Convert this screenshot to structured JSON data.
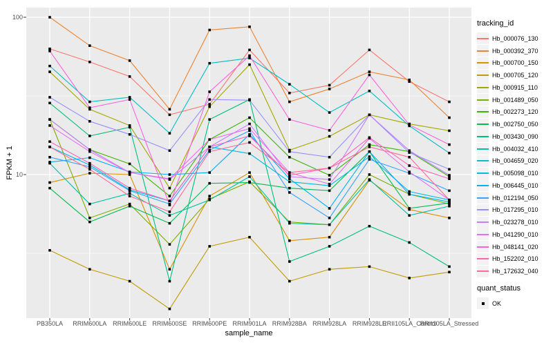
{
  "figure": {
    "y_axis_title": "FPKM + 1",
    "x_axis_title": "sample_name",
    "y_tick_labels": [
      "100",
      "10"
    ],
    "legend": {
      "tracking_title": "tracking_id",
      "quant_title": "quant_status",
      "quant_item_label": "OK",
      "quant_marker": "black-square"
    },
    "colors": {
      "panel_bg": "#EBEBEB",
      "grid": "#FFFFFF",
      "tick_text": "#4D4D4D",
      "title_text": "#000000",
      "point_marker": "#000000",
      "legend_key_bg": "#F2F2F2"
    }
  },
  "chart_data": {
    "type": "line",
    "title": "",
    "xlabel": "sample_name",
    "ylabel": "FPKM + 1",
    "y_scale": "log10",
    "y_ticks": [
      10,
      100
    ],
    "y_minor_gridlines": [
      3.16,
      31.6
    ],
    "ylim": [
      1.3,
      115
    ],
    "grid": true,
    "legend_position": "right",
    "point_marker": "black square (quant_status OK)",
    "categories": [
      "PB350LA",
      "RRIM600LA",
      "RRIM600LE",
      "RRIM600SE",
      "RRIM600PE",
      "RRIM901LA",
      "RRIM928BA",
      "RRIM928LA",
      "RRIM928LE",
      "RRII105LA_Control",
      "RRII105LA_Stressed"
    ],
    "series": [
      {
        "name": "Hb_000076_130",
        "color": "#F8766D",
        "values": [
          63,
          52,
          42,
          24,
          28,
          62,
          33,
          37,
          62,
          39,
          29
        ]
      },
      {
        "name": "Hb_000392_370",
        "color": "#EA8331",
        "values": [
          100,
          66,
          53,
          26,
          83,
          87,
          29,
          35,
          45,
          40,
          23
        ]
      },
      {
        "name": "Hb_000700_150",
        "color": "#D89000",
        "values": [
          8.9,
          10.2,
          10.0,
          2.5,
          7.3,
          10.3,
          3.8,
          4.0,
          9.2,
          6.0,
          5.3
        ]
      },
      {
        "name": "Hb_000705_120",
        "color": "#C09B00",
        "values": [
          3.3,
          2.5,
          2.1,
          1.4,
          3.5,
          4.0,
          2.1,
          2.5,
          2.6,
          2.2,
          2.4
        ]
      },
      {
        "name": "Hb_000915_110",
        "color": "#A3A500",
        "values": [
          45,
          26,
          20.5,
          8.2,
          27,
          50,
          14.3,
          17.5,
          24,
          21,
          19
        ]
      },
      {
        "name": "Hb_001489_050",
        "color": "#7CAE00",
        "values": [
          22.4,
          5.3,
          6.5,
          3.6,
          7.0,
          9.0,
          5.0,
          4.8,
          10.0,
          7.5,
          6.5
        ]
      },
      {
        "name": "Hb_002273_120",
        "color": "#39B600",
        "values": [
          22.4,
          14.4,
          11.7,
          7.3,
          16.7,
          23,
          12.9,
          9.9,
          15.5,
          14.0,
          9.7
        ]
      },
      {
        "name": "Hb_002750_050",
        "color": "#00BB4E",
        "values": [
          8.2,
          5.0,
          6.3,
          4.9,
          8.8,
          8.9,
          8.2,
          7.9,
          14.0,
          6.1,
          6.6
        ]
      },
      {
        "name": "Hb_003430_090",
        "color": "#00BF7D",
        "values": [
          28.5,
          17.6,
          20.0,
          2.1,
          22.4,
          30.0,
          2.8,
          3.5,
          4.7,
          3.7,
          2.6
        ]
      },
      {
        "name": "Hb_004032_410",
        "color": "#00C1A3",
        "values": [
          11.8,
          6.5,
          7.6,
          5.5,
          6.9,
          9.7,
          4.9,
          4.8,
          9.3,
          5.5,
          6.3
        ]
      },
      {
        "name": "Hb_004659_020",
        "color": "#00BFC4",
        "values": [
          49,
          29,
          31,
          18.3,
          51,
          55,
          37.5,
          24.8,
          34,
          20.4,
          13.7
        ]
      },
      {
        "name": "Hb_005098_010",
        "color": "#00BAE0",
        "values": [
          15.0,
          11.5,
          8.0,
          6.8,
          15.0,
          13.6,
          9.0,
          8.5,
          13.0,
          7.8,
          6.9
        ]
      },
      {
        "name": "Hb_006445_010",
        "color": "#00B0F6",
        "values": [
          12.0,
          12.8,
          10.4,
          10.0,
          10.3,
          18.0,
          9.4,
          6.1,
          14.0,
          7.5,
          6.7
        ]
      },
      {
        "name": "Hb_012194_050",
        "color": "#35A2FF",
        "values": [
          12.9,
          11.2,
          7.9,
          6.5,
          14.3,
          19.0,
          7.7,
          5.3,
          12.5,
          10.2,
          7.9
        ]
      },
      {
        "name": "Hb_017295_010",
        "color": "#9590FF",
        "values": [
          31,
          21.8,
          18,
          14.2,
          30,
          29.7,
          14.0,
          12.9,
          24,
          13.8,
          10.8
        ]
      },
      {
        "name": "Hb_023278_010",
        "color": "#C77CFF",
        "values": [
          22.4,
          14.4,
          10.3,
          9.3,
          15.0,
          21.0,
          9.7,
          9.3,
          24.0,
          14.2,
          9.9
        ]
      },
      {
        "name": "Hb_041290_010",
        "color": "#E76BF3",
        "values": [
          20.5,
          14.0,
          10.3,
          9.4,
          16.7,
          19.6,
          10.3,
          8.7,
          17.0,
          10.4,
          6.9
        ]
      },
      {
        "name": "Hb_048141_020",
        "color": "#FA62DB",
        "values": [
          61,
          26.6,
          30,
          6.4,
          33.6,
          57,
          22.4,
          19.1,
          43,
          20.7,
          15.5
        ]
      },
      {
        "name": "Hb_152202_010",
        "color": "#FF62BC",
        "values": [
          16.2,
          11.8,
          8.2,
          6.8,
          15.0,
          17.6,
          9.9,
          11.0,
          17.2,
          11.4,
          9.4
        ]
      },
      {
        "name": "Hb_172632_040",
        "color": "#FF6A98",
        "values": [
          15.0,
          10.8,
          7.3,
          5.8,
          14.0,
          16.0,
          10.3,
          11.0,
          15.0,
          12.9,
          6.9
        ]
      }
    ]
  }
}
